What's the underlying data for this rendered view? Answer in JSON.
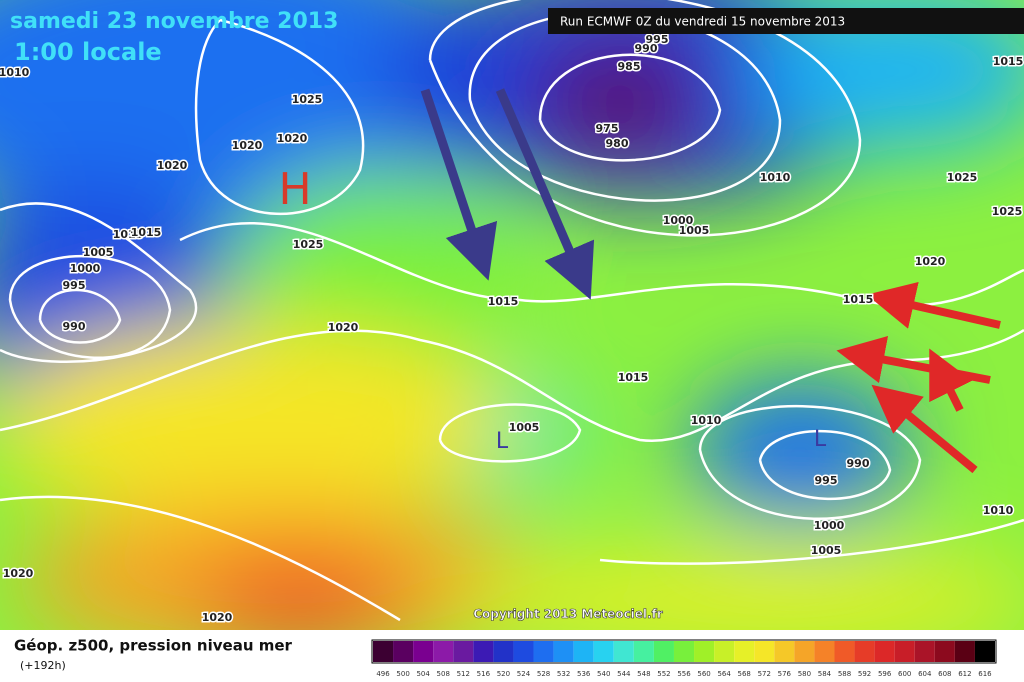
{
  "header": {
    "valid_date": "samedi 23 novembre 2013",
    "local_time": "1:00 locale",
    "run": "Run ECMWF 0Z du vendredi 15 novembre 2013"
  },
  "map": {
    "high_label": "H",
    "low_labels": [
      "L",
      "L"
    ],
    "isobar_labels": [
      1010,
      1025,
      1020,
      1020,
      1020,
      1015,
      1015,
      1005,
      1000,
      995,
      990,
      995,
      990,
      985,
      975,
      980,
      1010,
      1000,
      1005,
      1025,
      1020,
      1015,
      1015,
      1010,
      1005,
      1015,
      1020,
      1025,
      1025,
      1015,
      990,
      995,
      1000,
      1005,
      1010,
      1020,
      1020
    ],
    "copyright": "Copyright 2013 Meteociel.fr"
  },
  "legend": {
    "title": "Géop. z500, pression niveau mer",
    "lead_time": "(+192h)",
    "scale_labels": [
      496,
      500,
      504,
      508,
      512,
      516,
      520,
      524,
      528,
      532,
      536,
      540,
      544,
      548,
      552,
      556,
      560,
      564,
      568,
      572,
      576,
      580,
      584,
      588,
      592,
      596,
      600,
      604,
      608,
      612,
      616
    ],
    "scale_colors": [
      "#3c0032",
      "#5a0060",
      "#7a0090",
      "#8c1aa8",
      "#6a1aa0",
      "#3c1ab4",
      "#2232c8",
      "#1e4be0",
      "#1e6ef0",
      "#1e90f5",
      "#1eb4f5",
      "#28d2f0",
      "#40e6d2",
      "#46f0a0",
      "#50f064",
      "#78f03c",
      "#a0f028",
      "#c8f028",
      "#e6f028",
      "#f5e628",
      "#f5c828",
      "#f5a528",
      "#f58228",
      "#f05a28",
      "#e63c28",
      "#dc2828",
      "#c81e28",
      "#aa1428",
      "#8c0a1e",
      "#5a0014",
      "#000000"
    ]
  }
}
